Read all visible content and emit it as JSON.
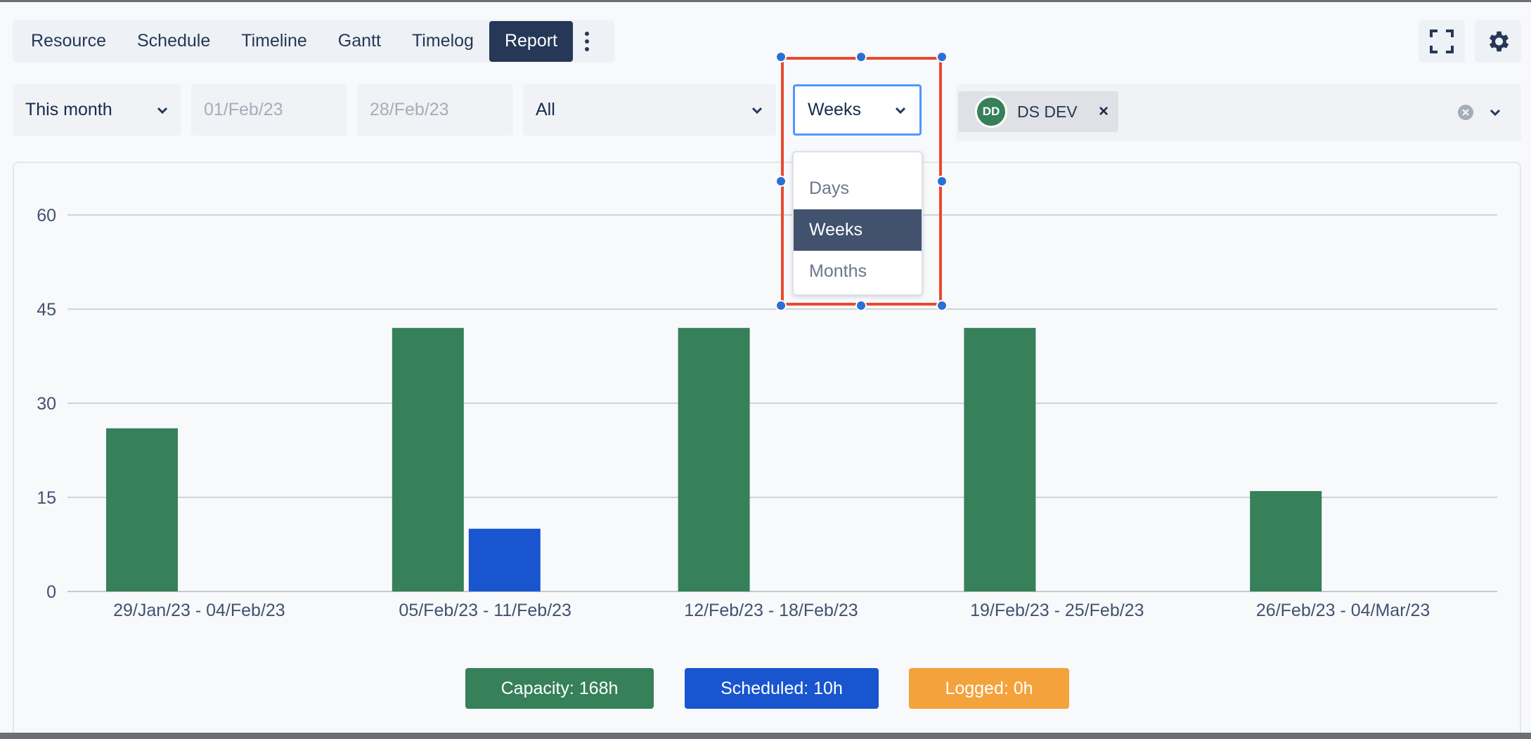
{
  "tabs": [
    {
      "label": "Resource",
      "active": false
    },
    {
      "label": "Schedule",
      "active": false
    },
    {
      "label": "Timeline",
      "active": false
    },
    {
      "label": "Gantt",
      "active": false
    },
    {
      "label": "Timelog",
      "active": false
    },
    {
      "label": "Report",
      "active": true
    }
  ],
  "icons": {
    "more": "vertical-dots-icon",
    "fullscreen": "fullscreen-icon",
    "settings": "gear-icon",
    "chevron": "chevron-down-icon",
    "clear": "clear-circle-icon",
    "remove": "close-icon"
  },
  "filters": {
    "period": "This month",
    "start_date": "01/Feb/23",
    "end_date": "28/Feb/23",
    "scope": "All",
    "granularity": "Weeks"
  },
  "granularity_menu": {
    "options": [
      "Days",
      "Weeks",
      "Months"
    ],
    "selected": "Weeks"
  },
  "user_filter": {
    "initials": "DD",
    "name": "DS DEV",
    "remove_label": "×"
  },
  "legend": {
    "capacity": "Capacity: 168h",
    "scheduled": "Scheduled: 10h",
    "logged": "Logged: 0h"
  },
  "colors": {
    "capacity": "#36805a",
    "scheduled": "#1955ce",
    "logged": "#f4a23c",
    "active_tab": "#253858",
    "selection": "#e84a2f"
  },
  "chart_data": {
    "type": "bar",
    "categories": [
      "29/Jan/23 - 04/Feb/23",
      "05/Feb/23 - 11/Feb/23",
      "12/Feb/23 - 18/Feb/23",
      "19/Feb/23 - 25/Feb/23",
      "26/Feb/23 - 04/Mar/23"
    ],
    "series": [
      {
        "name": "Capacity",
        "values": [
          26,
          42,
          42,
          42,
          16
        ]
      },
      {
        "name": "Scheduled",
        "values": [
          0,
          10,
          0,
          0,
          0
        ]
      },
      {
        "name": "Logged",
        "values": [
          0,
          0,
          0,
          0,
          0
        ]
      }
    ],
    "yticks": [
      0,
      15,
      30,
      45,
      60
    ],
    "ylim": [
      0,
      60
    ],
    "grid": true,
    "legend_position": "bottom-center"
  }
}
